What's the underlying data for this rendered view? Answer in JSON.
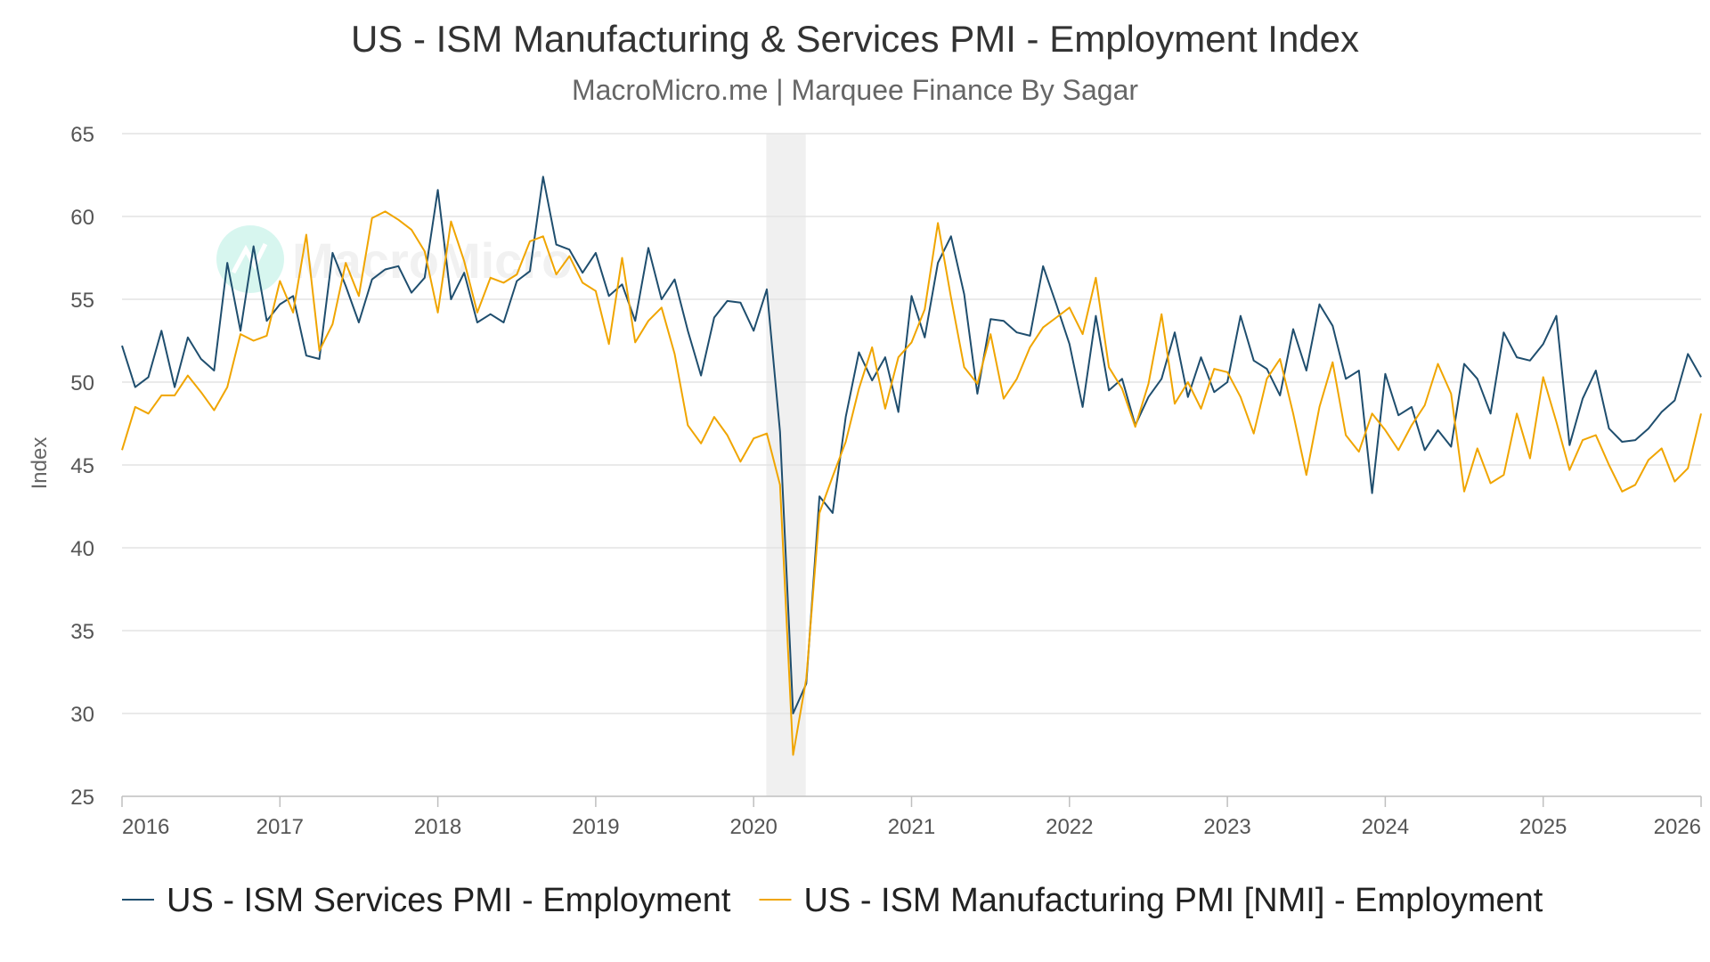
{
  "chart_data": {
    "type": "line",
    "title": "US - ISM Manufacturing & Services PMI - Employment Index",
    "subtitle": "MacroMicro.me | Marquee Finance By Sagar",
    "watermark": "MacroMicro",
    "ylabel": "Index",
    "xlabel": "",
    "ylim": [
      25,
      65
    ],
    "yticks": [
      25,
      30,
      35,
      40,
      45,
      50,
      55,
      60,
      65
    ],
    "xlim": [
      2016.0,
      2026.0
    ],
    "xticks": [
      "2016",
      "2017",
      "2018",
      "2019",
      "2020",
      "2021",
      "2022",
      "2023",
      "2024",
      "2025",
      "2026"
    ],
    "shaded_region": [
      2020.08,
      2020.33
    ],
    "grid": true,
    "legend_position": "bottom",
    "series": [
      {
        "name": "US - ISM Services PMI - Employment",
        "color": "#1f4e6e",
        "values": [
          52.2,
          49.7,
          50.3,
          53.1,
          49.7,
          52.7,
          51.4,
          50.7,
          57.2,
          53.1,
          58.2,
          53.7,
          54.7,
          55.2,
          51.6,
          51.4,
          57.8,
          55.8,
          53.6,
          56.2,
          56.8,
          57.0,
          55.4,
          56.3,
          61.6,
          55.0,
          56.6,
          53.6,
          54.1,
          53.6,
          56.1,
          56.7,
          62.4,
          58.3,
          58.0,
          56.6,
          57.8,
          55.2,
          55.9,
          53.7,
          58.1,
          55.0,
          56.2,
          53.1,
          50.4,
          53.9,
          54.9,
          54.8,
          53.1,
          55.6,
          47.0,
          30.0,
          31.8,
          43.1,
          42.1,
          47.9,
          51.8,
          50.1,
          51.5,
          48.2,
          55.2,
          52.7,
          57.2,
          58.8,
          55.3,
          49.3,
          53.8,
          53.7,
          53.0,
          52.8,
          57.0,
          54.7,
          52.3,
          48.5,
          54.0,
          49.5,
          50.2,
          47.4,
          49.1,
          50.2,
          53.0,
          49.1,
          51.5,
          49.4,
          50.0,
          54.0,
          51.3,
          50.8,
          49.2,
          53.2,
          50.7,
          54.7,
          53.4,
          50.2,
          50.7,
          43.3,
          50.5,
          48.0,
          48.5,
          45.9,
          47.1,
          46.1,
          51.1,
          50.2,
          48.1,
          53.0,
          51.5,
          51.3,
          52.3,
          54.0,
          46.2,
          49.0,
          50.7,
          47.2,
          46.4,
          46.5,
          47.2,
          48.2,
          48.9,
          51.7,
          50.3
        ]
      },
      {
        "name": "US - ISM Manufacturing PMI [NMI] - Employment",
        "color": "#f0a500",
        "values": [
          45.9,
          48.5,
          48.1,
          49.2,
          49.2,
          50.4,
          49.4,
          48.3,
          49.7,
          52.9,
          52.5,
          52.8,
          56.1,
          54.2,
          58.9,
          51.9,
          53.5,
          57.2,
          55.2,
          59.9,
          60.3,
          59.8,
          59.2,
          57.9,
          54.2,
          59.7,
          57.3,
          54.2,
          56.3,
          56.0,
          56.5,
          58.5,
          58.8,
          56.5,
          57.6,
          56.0,
          55.5,
          52.3,
          57.5,
          52.4,
          53.7,
          54.5,
          51.7,
          47.4,
          46.3,
          47.9,
          46.8,
          45.2,
          46.6,
          46.9,
          43.8,
          27.5,
          32.1,
          42.1,
          44.3,
          46.4,
          49.6,
          52.1,
          48.4,
          51.5,
          52.4,
          54.4,
          59.6,
          55.1,
          50.9,
          49.9,
          52.9,
          49.0,
          50.2,
          52.1,
          53.3,
          53.9,
          54.5,
          52.9,
          56.3,
          50.9,
          49.6,
          47.3,
          49.9,
          54.1,
          48.7,
          50.0,
          48.4,
          50.8,
          50.6,
          49.1,
          46.9,
          50.2,
          51.4,
          48.1,
          44.4,
          48.5,
          51.2,
          46.8,
          45.8,
          48.1,
          47.1,
          45.9,
          47.4,
          48.6,
          51.1,
          49.3,
          43.4,
          46.0,
          43.9,
          44.4,
          48.1,
          45.4,
          50.3,
          47.6,
          44.7,
          46.5,
          46.8,
          45.0,
          43.4,
          43.8,
          45.3,
          46.0,
          44.0,
          44.8,
          48.1
        ]
      }
    ]
  }
}
